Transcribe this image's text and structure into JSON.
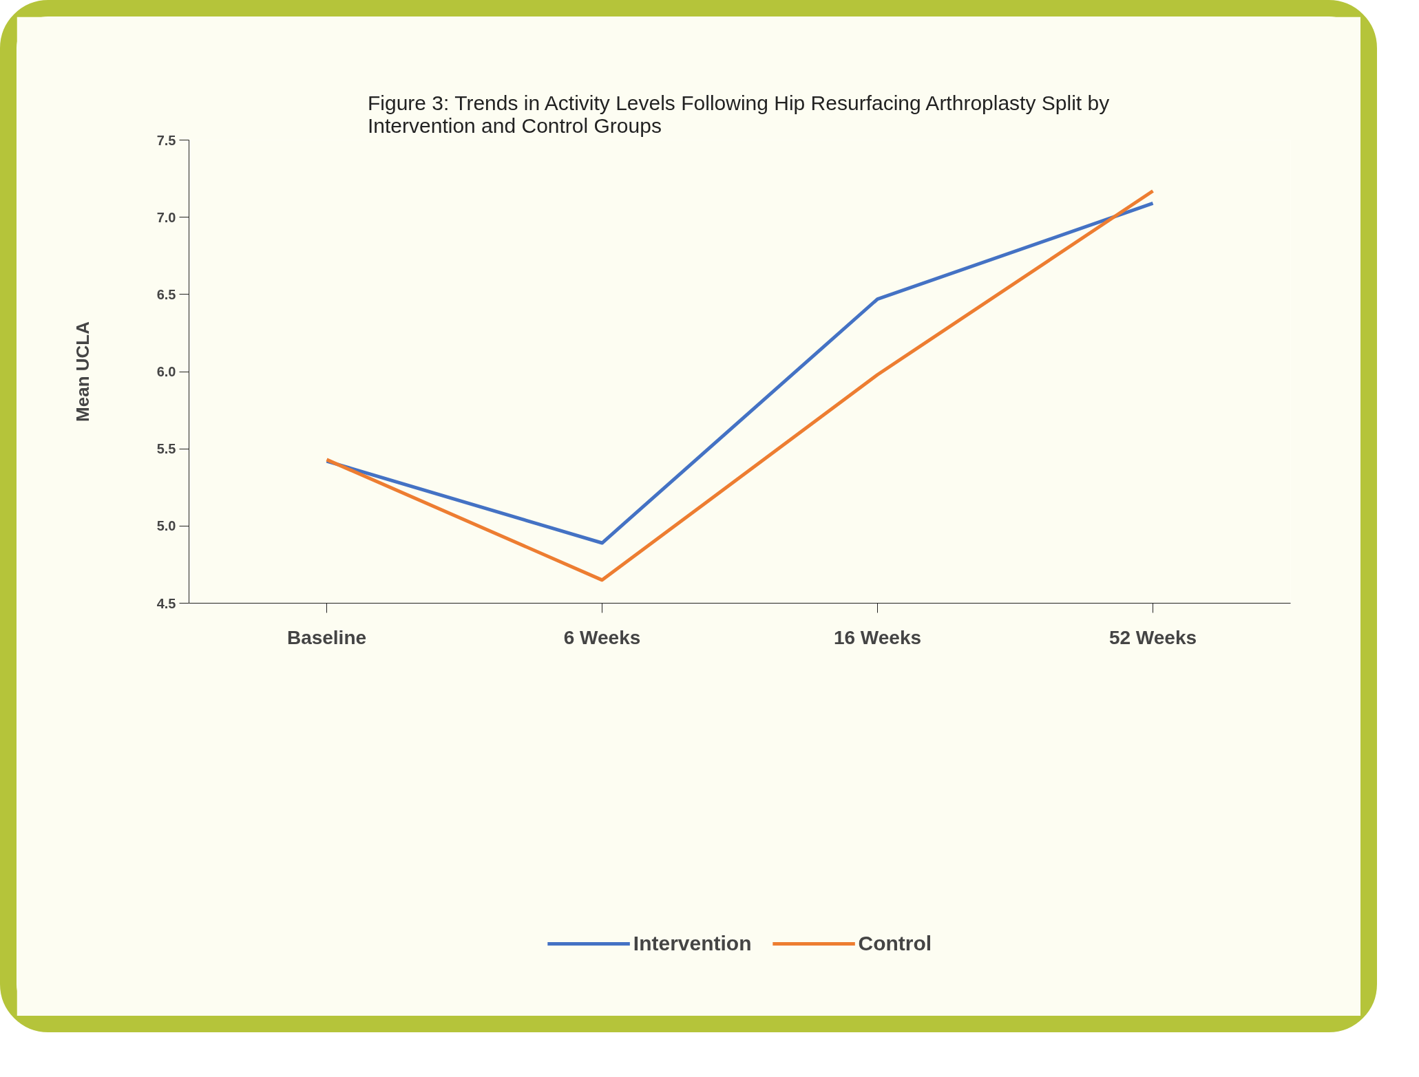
{
  "chart_data": {
    "type": "line",
    "title": "Figure 3: Trends in Activity Levels Following Hip Resurfacing Arthroplasty Split by Intervention and Control Groups",
    "ylabel": "Mean UCLA",
    "categories": [
      "Baseline",
      "6 Weeks",
      "16 Weeks",
      "52 Weeks"
    ],
    "series": [
      {
        "name": "Intervention",
        "color": "#4472c4",
        "values": [
          5.42,
          4.89,
          6.47,
          7.09
        ]
      },
      {
        "name": "Control",
        "color": "#ed7d31",
        "values": [
          5.43,
          4.65,
          5.98,
          7.17
        ]
      }
    ],
    "ylim": [
      4.5,
      7.5
    ],
    "yticks": [
      {
        "value": 4.5,
        "label": "4.5"
      },
      {
        "value": 5,
        "label": "5.0"
      },
      {
        "value": 5.5,
        "label": "5.5"
      },
      {
        "value": 6,
        "label": "6.0"
      },
      {
        "value": 6.5,
        "label": "6.5"
      },
      {
        "value": 7,
        "label": "7.0"
      },
      {
        "value": 7.5,
        "label": "7.5"
      }
    ],
    "grid": false,
    "legend": "bottom",
    "marker": "none",
    "line_style": "solid"
  }
}
